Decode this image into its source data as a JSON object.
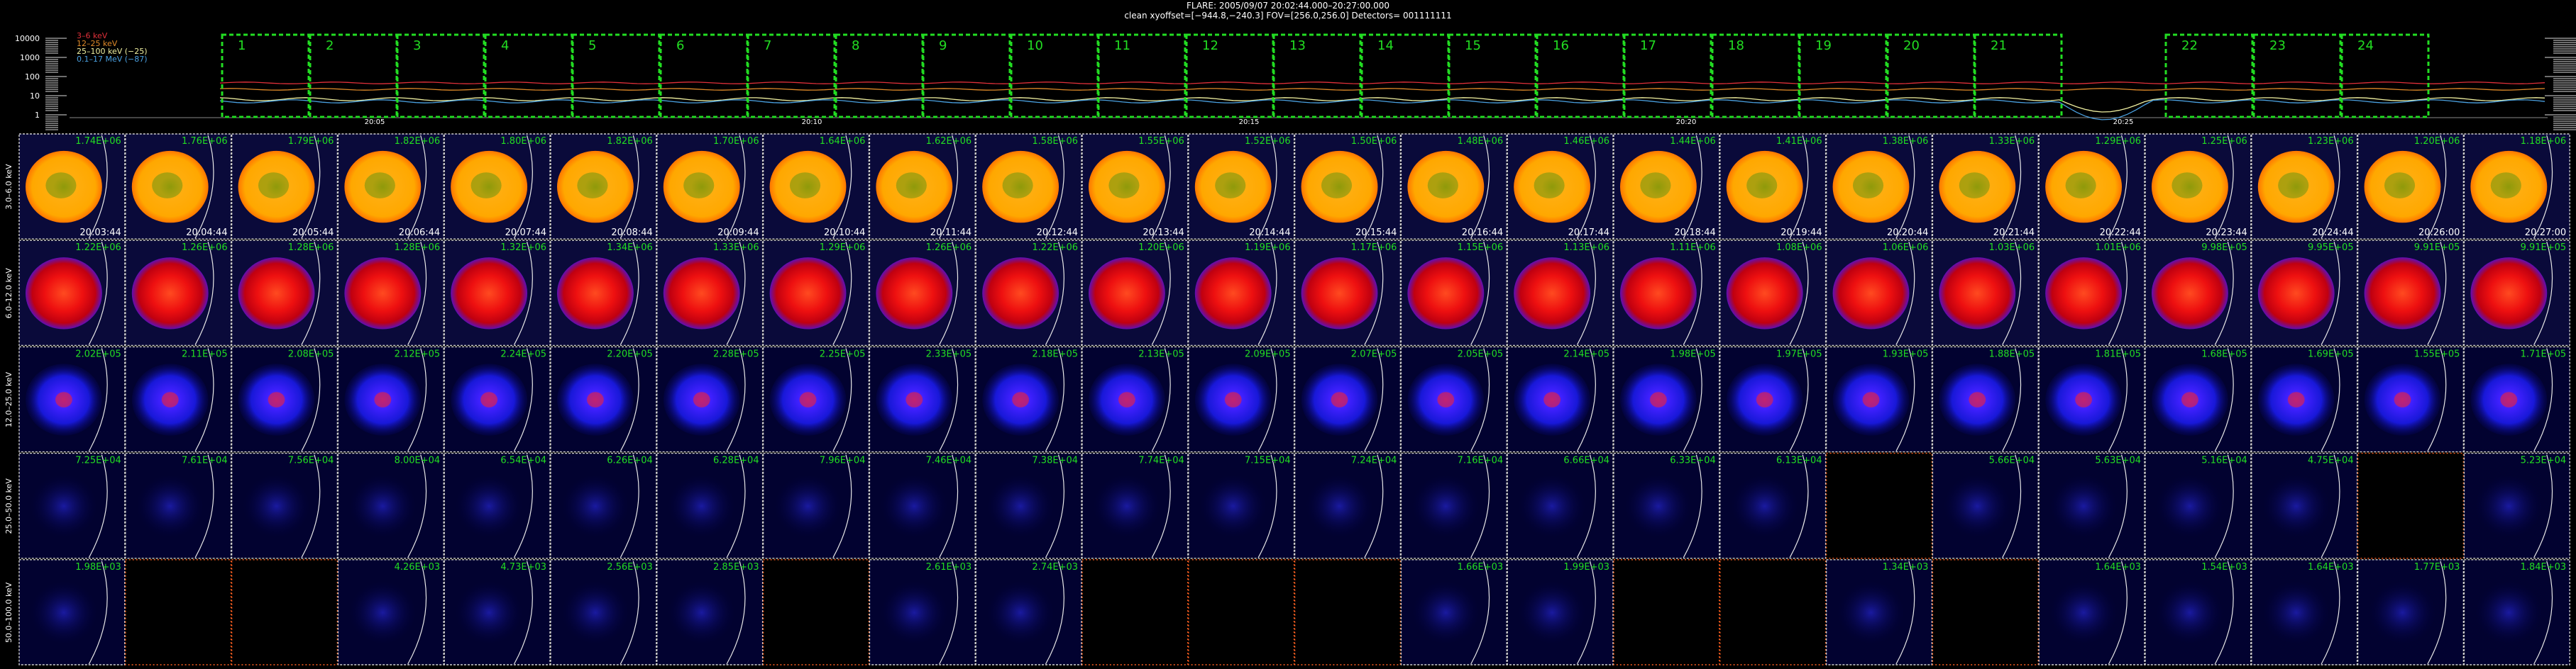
{
  "header": {
    "line1": "FLARE: 2005/09/07 20:02:44.000–20:27:00.000",
    "line2": "clean    xyoffset=[−944.8,−240.3]    FOV=[256.0,256.0]    Detectors= 001111111"
  },
  "lightcurve": {
    "y_ticks": [
      "10000",
      "1000",
      "100",
      "10",
      "1"
    ],
    "x_ticks": [
      "20:05",
      "20:10",
      "20:15",
      "20:20",
      "20:25"
    ],
    "legend": [
      {
        "label": "3–6 keV",
        "color": "#e0303a"
      },
      {
        "label": "12–25 keV",
        "color": "#e08a28"
      },
      {
        "label": "25–100 keV (−25)",
        "color": "#f0f0a0"
      },
      {
        "label": "0.1–17 MeV (−87)",
        "color": "#4aa0e0"
      }
    ],
    "intervals": [
      "1",
      "2",
      "3",
      "4",
      "5",
      "6",
      "7",
      "8",
      "9",
      "10",
      "11",
      "12",
      "13",
      "14",
      "15",
      "16",
      "17",
      "18",
      "19",
      "20",
      "21",
      "22",
      "23",
      "24"
    ]
  },
  "times": [
    "20:03:44",
    "20:04:44",
    "20:05:44",
    "20:06:44",
    "20:07:44",
    "20:08:44",
    "20:09:44",
    "20:10:44",
    "20:11:44",
    "20:12:44",
    "20:13:44",
    "20:14:44",
    "20:15:44",
    "20:16:44",
    "20:17:44",
    "20:18:44",
    "20:19:44",
    "20:20:44",
    "20:21:44",
    "20:22:44",
    "20:23:44",
    "20:24:44",
    "20:26:00",
    "20:27:00"
  ],
  "bands": [
    {
      "label": "3.0–6.0 keV",
      "style": "orange",
      "vals": [
        "1.74E+06",
        "1.76E+06",
        "1.79E+06",
        "1.82E+06",
        "1.80E+06",
        "1.82E+06",
        "1.70E+06",
        "1.64E+06",
        "1.62E+06",
        "1.58E+06",
        "1.55E+06",
        "1.52E+06",
        "1.50E+06",
        "1.48E+06",
        "1.46E+06",
        "1.44E+06",
        "1.41E+06",
        "1.38E+06",
        "1.33E+06",
        "1.29E+06",
        "1.25E+06",
        "1.23E+06",
        "1.20E+06",
        "1.18E+06"
      ]
    },
    {
      "label": "6.0–12.0 keV",
      "style": "red",
      "vals": [
        "1.22E+06",
        "1.26E+06",
        "1.28E+06",
        "1.28E+06",
        "1.32E+06",
        "1.34E+06",
        "1.33E+06",
        "1.29E+06",
        "1.26E+06",
        "1.22E+06",
        "1.20E+06",
        "1.19E+06",
        "1.17E+06",
        "1.15E+06",
        "1.13E+06",
        "1.11E+06",
        "1.08E+06",
        "1.06E+06",
        "1.03E+06",
        "1.01E+06",
        "9.98E+05",
        "9.95E+05",
        "9.91E+05",
        "9.91E+05"
      ]
    },
    {
      "label": "12.0–25.0 keV",
      "style": "blue",
      "vals": [
        "2.02E+05",
        "2.11E+05",
        "2.08E+05",
        "2.12E+05",
        "2.24E+05",
        "2.20E+05",
        "2.28E+05",
        "2.25E+05",
        "2.33E+05",
        "2.18E+05",
        "2.13E+05",
        "2.09E+05",
        "2.07E+05",
        "2.05E+05",
        "2.14E+05",
        "1.98E+05",
        "1.97E+05",
        "1.93E+05",
        "1.88E+05",
        "1.81E+05",
        "1.68E+05",
        "1.69E+05",
        "1.55E+05",
        "1.71E+05"
      ]
    },
    {
      "label": "25.0–50.0 keV",
      "style": "faint",
      "vals": [
        "7.25E+04",
        "7.61E+04",
        "7.56E+04",
        "8.00E+04",
        "6.54E+04",
        "6.26E+04",
        "6.28E+04",
        "7.96E+04",
        "7.46E+04",
        "7.38E+04",
        "7.74E+04",
        "7.15E+04",
        "7.24E+04",
        "7.16E+04",
        "6.66E+04",
        "6.33E+04",
        "6.13E+04",
        "",
        "5.66E+04",
        "5.63E+04",
        "5.16E+04",
        "4.75E+04",
        "",
        "5.23E+04"
      ]
    },
    {
      "label": "50.0–100.0 keV",
      "style": "faint",
      "vals": [
        "1.98E+03",
        "",
        "",
        "4.26E+03",
        "4.73E+03",
        "2.56E+03",
        "2.85E+03",
        "",
        "2.61E+03",
        "2.74E+03",
        "",
        "",
        "",
        "1.66E+03",
        "1.99E+03",
        "",
        "",
        "1.34E+03",
        "",
        "1.64E+03",
        "1.54E+03",
        "1.64E+03",
        "1.77E+03",
        "1.84E+03"
      ]
    }
  ]
}
